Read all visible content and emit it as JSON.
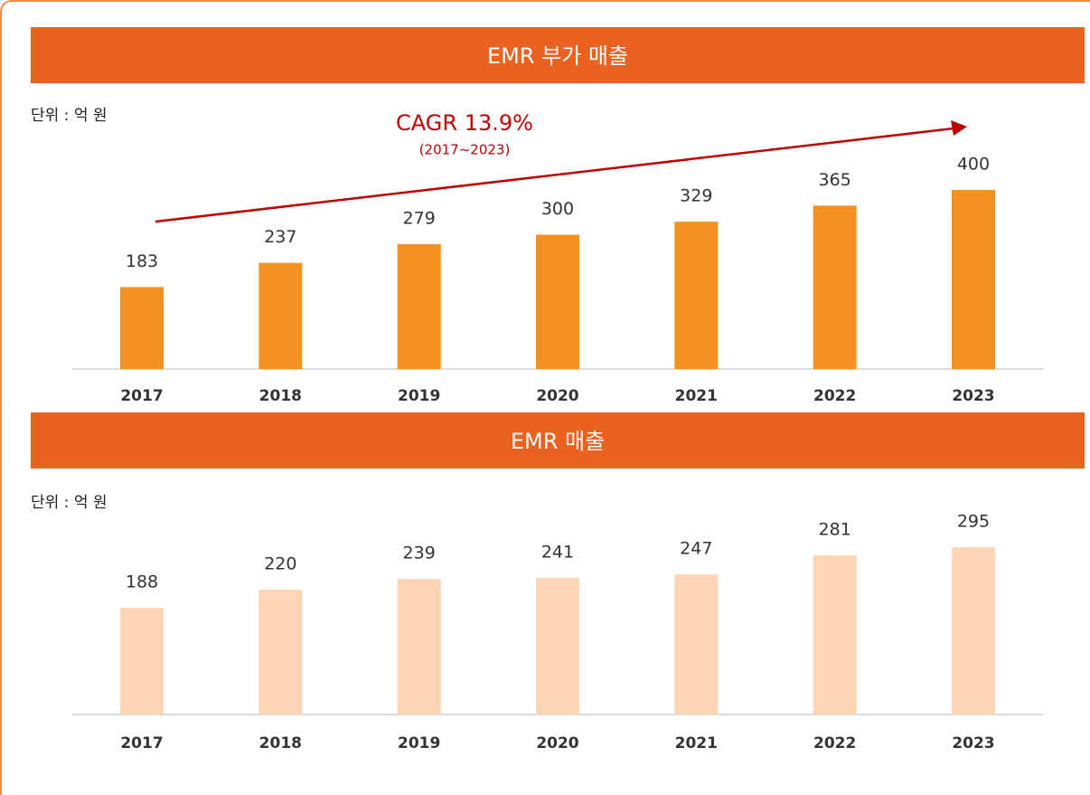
{
  "chart_data": [
    {
      "type": "bar",
      "title": "EMR 부가 매출",
      "unit": "단위 : 억 원",
      "annotation": "CAGR 13.9%",
      "annotation_sub": "(2017~2023)",
      "categories": [
        "2017",
        "2018",
        "2019",
        "2020",
        "2021",
        "2022",
        "2023"
      ],
      "values": [
        183,
        237,
        279,
        300,
        329,
        365,
        400
      ],
      "color": "#f39122",
      "ylim": [
        0,
        400
      ]
    },
    {
      "type": "bar",
      "title": "EMR 매출",
      "unit": "단위 : 억 원",
      "categories": [
        "2017",
        "2018",
        "2019",
        "2020",
        "2021",
        "2022",
        "2023"
      ],
      "values": [
        188,
        220,
        239,
        241,
        247,
        281,
        295
      ],
      "color": "#fcd5b5",
      "ylim": [
        0,
        300
      ]
    }
  ]
}
